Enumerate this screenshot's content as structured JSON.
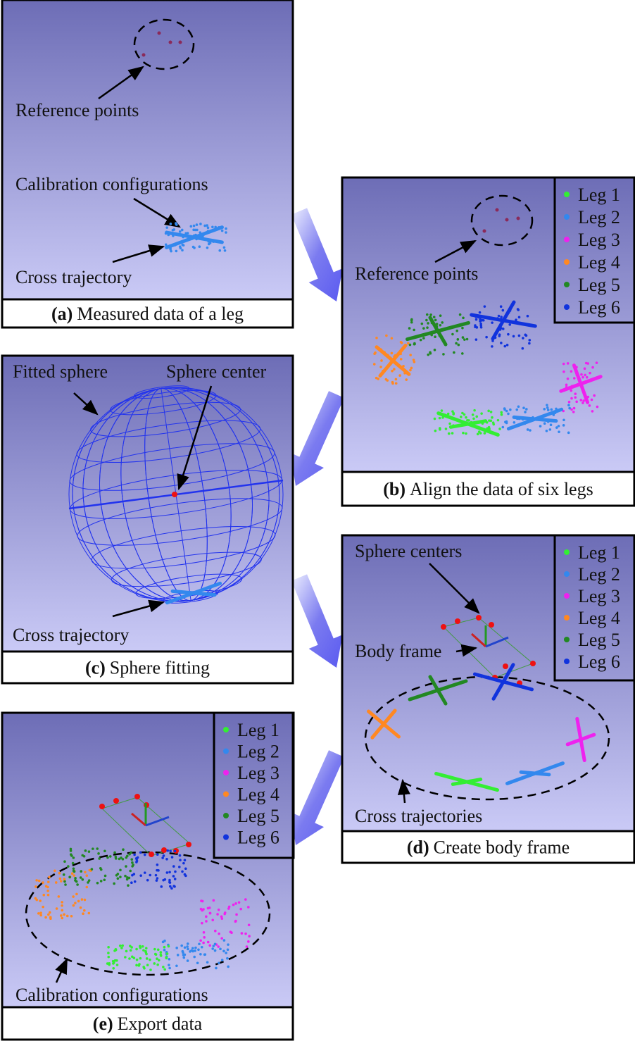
{
  "panels": [
    {
      "caption_label": "(a)",
      "caption_text": "Measured data of a leg",
      "annotations": [
        "Reference points",
        "Calibration configurations",
        "Cross trajectory"
      ]
    },
    {
      "caption_label": "(b)",
      "caption_text": "Align the data of six legs",
      "annotations": [
        "Reference points"
      ]
    },
    {
      "caption_label": "(c)",
      "caption_text": "Sphere fitting",
      "annotations": [
        "Fitted sphere",
        "Sphere center",
        "Cross trajectory"
      ]
    },
    {
      "caption_label": "(d)",
      "caption_text": "Create body frame",
      "annotations": [
        "Sphere centers",
        "Body frame",
        "Cross trajectories"
      ]
    },
    {
      "caption_label": "(e)",
      "caption_text": "Export data",
      "annotations": [
        "Calibration configurations"
      ]
    }
  ],
  "legend": [
    {
      "label": "Leg 1",
      "color": "#33ee33"
    },
    {
      "label": "Leg 2",
      "color": "#3388ee"
    },
    {
      "label": "Leg 3",
      "color": "#ee22ee"
    },
    {
      "label": "Leg 4",
      "color": "#ff8822"
    },
    {
      "label": "Leg 5",
      "color": "#228822"
    },
    {
      "label": "Leg 6",
      "color": "#1133dd"
    }
  ]
}
